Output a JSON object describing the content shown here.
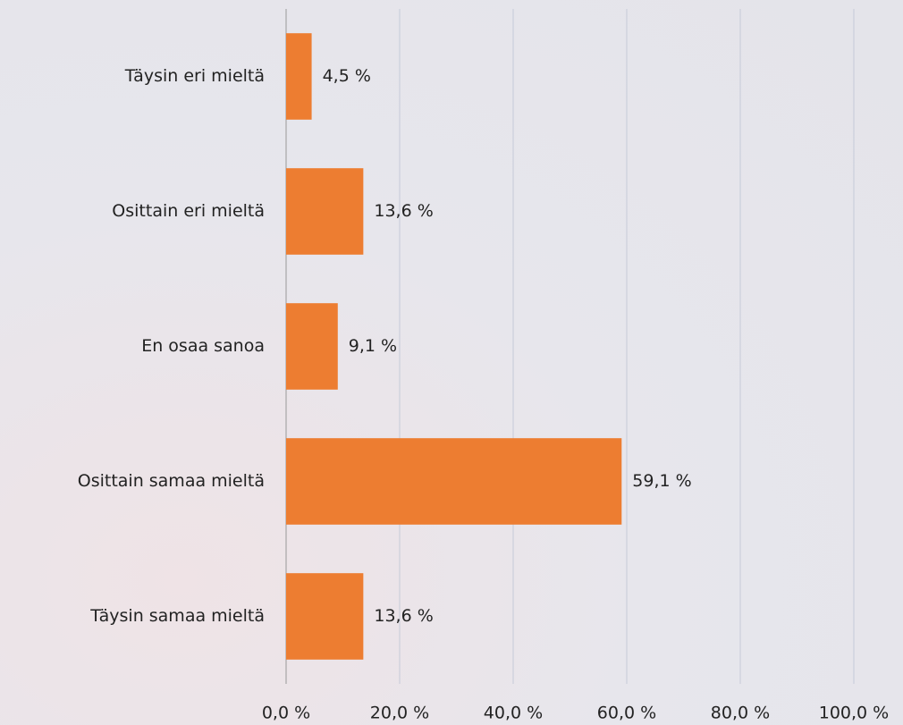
{
  "chart_data": {
    "type": "bar",
    "orientation": "horizontal",
    "categories": [
      "Täysin eri mieltä",
      "Osittain eri mieltä",
      "En osaa sanoa",
      "Osittain samaa mieltä",
      "Täysin samaa mieltä"
    ],
    "values": [
      4.5,
      13.6,
      9.1,
      59.1,
      13.6
    ],
    "value_labels": [
      "4,5 %",
      "13,6 %",
      "9,1 %",
      "59,1 %",
      "13,6 %"
    ],
    "color": "#ed7d31",
    "xlim": [
      0,
      100
    ],
    "xticks": [
      {
        "value": 0,
        "label": "0,0 %"
      },
      {
        "value": 20,
        "label": "20,0 %"
      },
      {
        "value": 40,
        "label": "40,0 %"
      },
      {
        "value": 60,
        "label": "60,0 %"
      },
      {
        "value": 80,
        "label": "80,0 %"
      },
      {
        "value": 100,
        "label": "100,0 %"
      }
    ],
    "grid": true
  }
}
